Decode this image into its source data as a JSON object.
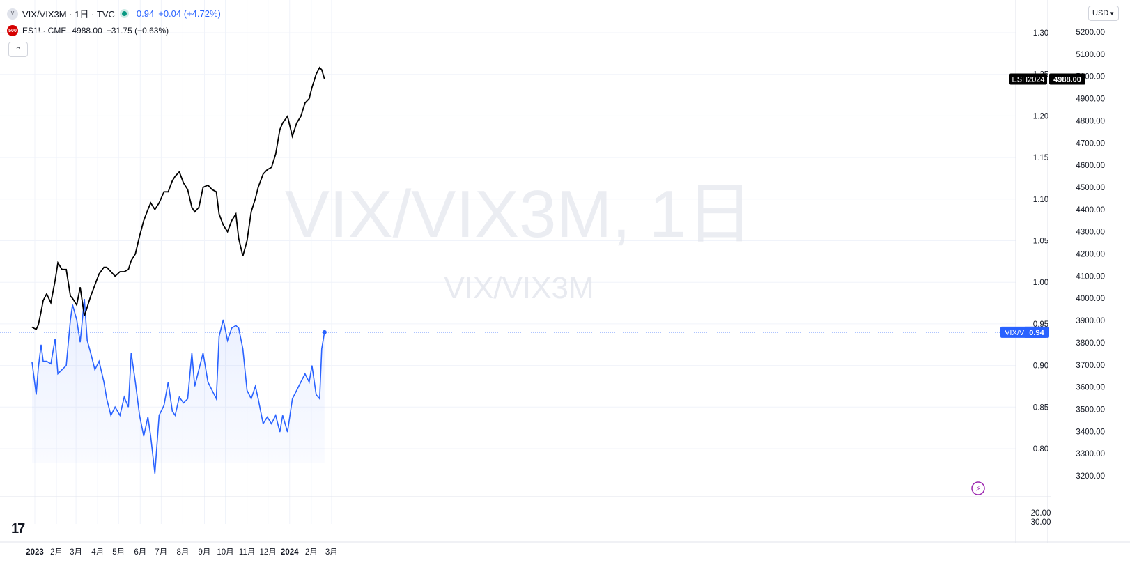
{
  "header": {
    "symbol_badge": "V",
    "symbol_title": "VIX/VIX3M · 1日 · TVC",
    "symbol_price": "0.94",
    "symbol_change": "+0.04 (+4.72%)",
    "compare_badge": "500",
    "compare_title": "ES1! · CME",
    "compare_price": "4988.00",
    "compare_change": "−31.75 (−0.63%)"
  },
  "watermark": {
    "main": "VIX/VIX3M, 1日",
    "sub": "VIX/VIX3M"
  },
  "toolbar": {
    "collapse_icon": "chevron-up-icon",
    "currency": "USD"
  },
  "colors": {
    "vix_line": "#2962ff",
    "es_line": "#000000",
    "live_dot": "#089981",
    "es_badge": "#d50000"
  },
  "chart_data": {
    "type": "line",
    "x_ticks": [
      "2023",
      "2月",
      "3月",
      "4月",
      "5月",
      "6月",
      "7月",
      "8月",
      "9月",
      "10月",
      "11月",
      "12月",
      "2024",
      "2月",
      "3月"
    ],
    "y_left": {
      "ticks": [
        "1.30",
        "1.25",
        "1.20",
        "1.15",
        "1.10",
        "1.05",
        "1.00",
        "0.95",
        "0.90",
        "0.85",
        "0.80"
      ],
      "range": [
        0.77,
        1.32
      ]
    },
    "y_right": {
      "ticks": [
        "5200.00",
        "5100.00",
        "5000.00",
        "4900.00",
        "4800.00",
        "4700.00",
        "4600.00",
        "4500.00",
        "4400.00",
        "4300.00",
        "4200.00",
        "4100.00",
        "4000.00",
        "3900.00",
        "3800.00",
        "3700.00",
        "3600.00",
        "3500.00",
        "3400.00",
        "3300.00",
        "3200.00"
      ],
      "range": [
        3130,
        5290
      ]
    },
    "lower_pane_ticks": [
      "20.00",
      "30.00"
    ],
    "last_labels": {
      "vix": {
        "name": "VIX/VIX3M",
        "value": "0.94"
      },
      "es": {
        "name": "ESH2024",
        "value": "4988.00"
      }
    },
    "series": [
      {
        "name": "VIX/VIX3M",
        "scale": "left",
        "dates": [
          "2022-12-28",
          "2023-01-03",
          "2023-01-06",
          "2023-01-10",
          "2023-01-13",
          "2023-01-18",
          "2023-01-24",
          "2023-01-30",
          "2023-02-03",
          "2023-02-09",
          "2023-02-15",
          "2023-02-21",
          "2023-02-24",
          "2023-03-02",
          "2023-03-07",
          "2023-03-13",
          "2023-03-17",
          "2023-03-22",
          "2023-03-28",
          "2023-04-03",
          "2023-04-10",
          "2023-04-14",
          "2023-04-20",
          "2023-04-26",
          "2023-05-03",
          "2023-05-09",
          "2023-05-15",
          "2023-05-19",
          "2023-05-25",
          "2023-05-31",
          "2023-06-06",
          "2023-06-12",
          "2023-06-16",
          "2023-06-22",
          "2023-06-28",
          "2023-07-05",
          "2023-07-11",
          "2023-07-17",
          "2023-07-21",
          "2023-07-27",
          "2023-08-02",
          "2023-08-08",
          "2023-08-14",
          "2023-08-18",
          "2023-08-24",
          "2023-08-30",
          "2023-09-06",
          "2023-09-12",
          "2023-09-18",
          "2023-09-22",
          "2023-09-28",
          "2023-10-04",
          "2023-10-10",
          "2023-10-16",
          "2023-10-20",
          "2023-10-26",
          "2023-11-01",
          "2023-11-07",
          "2023-11-13",
          "2023-11-17",
          "2023-11-24",
          "2023-11-30",
          "2023-12-06",
          "2023-12-12",
          "2023-12-18",
          "2023-12-22",
          "2023-12-29",
          "2024-01-05",
          "2024-01-11",
          "2024-01-17",
          "2024-01-23",
          "2024-01-29",
          "2024-02-02",
          "2024-02-08",
          "2024-02-13",
          "2024-02-16",
          "2024-02-20"
        ],
        "values": [
          0.904,
          0.865,
          0.897,
          0.925,
          0.905,
          0.905,
          0.902,
          0.932,
          0.89,
          0.895,
          0.9,
          0.955,
          0.973,
          0.955,
          0.928,
          0.98,
          0.93,
          0.915,
          0.895,
          0.905,
          0.88,
          0.86,
          0.84,
          0.85,
          0.84,
          0.862,
          0.85,
          0.915,
          0.88,
          0.84,
          0.815,
          0.838,
          0.815,
          0.77,
          0.84,
          0.852,
          0.88,
          0.845,
          0.84,
          0.862,
          0.855,
          0.86,
          0.915,
          0.875,
          0.895,
          0.915,
          0.88,
          0.87,
          0.86,
          0.935,
          0.955,
          0.93,
          0.945,
          0.948,
          0.945,
          0.92,
          0.87,
          0.86,
          0.875,
          0.86,
          0.83,
          0.838,
          0.83,
          0.84,
          0.82,
          0.84,
          0.82,
          0.86,
          0.87,
          0.88,
          0.89,
          0.88,
          0.9,
          0.865,
          0.86,
          0.92,
          0.94
        ]
      },
      {
        "name": "ESH2024",
        "scale": "right",
        "dates": [
          "2022-12-28",
          "2023-01-03",
          "2023-01-06",
          "2023-01-10",
          "2023-01-13",
          "2023-01-18",
          "2023-01-24",
          "2023-01-30",
          "2023-02-03",
          "2023-02-09",
          "2023-02-15",
          "2023-02-21",
          "2023-02-24",
          "2023-03-02",
          "2023-03-07",
          "2023-03-13",
          "2023-03-17",
          "2023-03-22",
          "2023-03-28",
          "2023-04-03",
          "2023-04-10",
          "2023-04-14",
          "2023-04-20",
          "2023-04-26",
          "2023-05-03",
          "2023-05-09",
          "2023-05-15",
          "2023-05-19",
          "2023-05-25",
          "2023-05-31",
          "2023-06-06",
          "2023-06-12",
          "2023-06-16",
          "2023-06-22",
          "2023-06-28",
          "2023-07-05",
          "2023-07-11",
          "2023-07-17",
          "2023-07-21",
          "2023-07-27",
          "2023-08-02",
          "2023-08-08",
          "2023-08-14",
          "2023-08-18",
          "2023-08-24",
          "2023-08-30",
          "2023-09-06",
          "2023-09-12",
          "2023-09-18",
          "2023-09-22",
          "2023-09-28",
          "2023-10-04",
          "2023-10-10",
          "2023-10-16",
          "2023-10-20",
          "2023-10-26",
          "2023-11-01",
          "2023-11-07",
          "2023-11-13",
          "2023-11-17",
          "2023-11-24",
          "2023-11-30",
          "2023-12-06",
          "2023-12-12",
          "2023-12-18",
          "2023-12-22",
          "2023-12-29",
          "2024-01-05",
          "2024-01-11",
          "2024-01-17",
          "2024-01-23",
          "2024-01-29",
          "2024-02-02",
          "2024-02-08",
          "2024-02-13",
          "2024-02-16",
          "2024-02-20"
        ],
        "values": [
          3870,
          3860,
          3880,
          3940,
          3990,
          4020,
          3980,
          4080,
          4160,
          4130,
          4130,
          4010,
          4000,
          3970,
          4050,
          3920,
          3960,
          4010,
          4060,
          4110,
          4140,
          4140,
          4120,
          4100,
          4120,
          4120,
          4130,
          4170,
          4200,
          4280,
          4350,
          4400,
          4430,
          4400,
          4430,
          4480,
          4480,
          4530,
          4550,
          4570,
          4520,
          4490,
          4410,
          4390,
          4410,
          4500,
          4510,
          4490,
          4480,
          4380,
          4330,
          4300,
          4350,
          4380,
          4270,
          4190,
          4260,
          4390,
          4450,
          4500,
          4560,
          4580,
          4590,
          4650,
          4760,
          4790,
          4820,
          4730,
          4790,
          4820,
          4880,
          4900,
          4950,
          5010,
          5040,
          5030,
          4988
        ]
      }
    ],
    "grid": true,
    "legend": "top-left"
  }
}
